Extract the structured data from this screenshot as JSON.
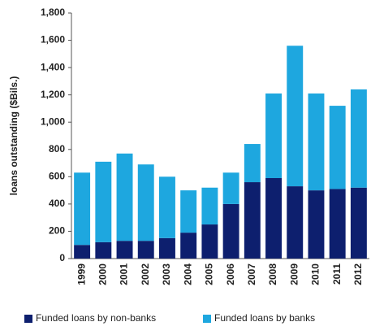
{
  "chart_data": {
    "type": "bar",
    "stacked": true,
    "y_label": "loans outstanding ($Bils.)",
    "categories": [
      "1999",
      "2000",
      "2001",
      "2002",
      "2003",
      "2004",
      "2005",
      "2006",
      "2007",
      "2008",
      "2009",
      "2010",
      "2011",
      "2012"
    ],
    "series": [
      {
        "name": "Funded loans by non-banks",
        "color": "#0d1f6e",
        "values": [
          100,
          120,
          130,
          130,
          150,
          190,
          250,
          400,
          560,
          590,
          530,
          500,
          510,
          520
        ]
      },
      {
        "name": "Funded loans by banks",
        "color": "#1ea7df",
        "values": [
          530,
          590,
          640,
          560,
          450,
          310,
          270,
          230,
          280,
          620,
          1030,
          710,
          610,
          720
        ]
      }
    ],
    "ylim": [
      0,
      1800
    ],
    "yticks": [
      0,
      200,
      400,
      600,
      800,
      {
        "value": 1000,
        "label": "1,000"
      },
      {
        "value": 1200,
        "label": "1,200"
      },
      {
        "value": 1400,
        "label": "1,400"
      },
      {
        "value": 1600,
        "label": "1,600"
      },
      {
        "value": 1800,
        "label": "1,800"
      }
    ],
    "grid": false,
    "legend": "bottom"
  }
}
